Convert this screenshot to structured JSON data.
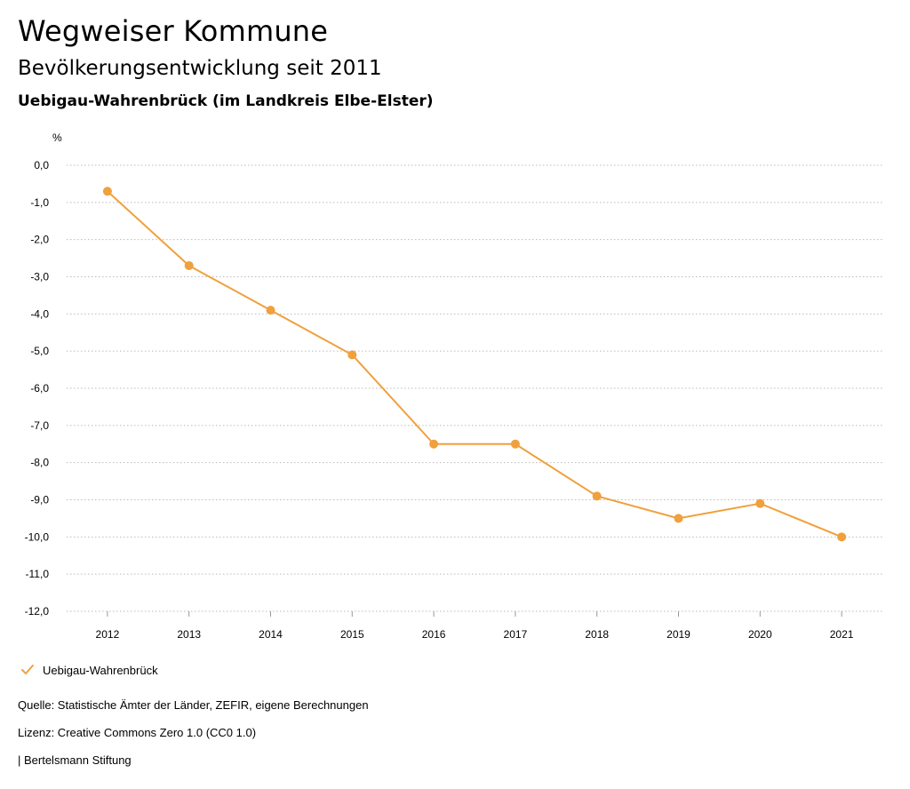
{
  "title": "Wegweiser Kommune",
  "subtitle": "Bevölkerungsentwicklung seit 2011",
  "region": "Uebigau-Wahrenbrück (im Landkreis Elbe-Elster)",
  "footer": {
    "source": "Quelle: Statistische Ämter der Länder, ZEFIR, eigene Berechnungen",
    "license": "Lizenz: Creative Commons Zero 1.0 (CC0 1.0)",
    "publisher": "| Bertelsmann Stiftung"
  },
  "colors": {
    "series": "#f0a03c",
    "grid": "#bbbbbb",
    "axis": "#999999",
    "text": "#000000"
  },
  "chart_data": {
    "type": "line",
    "title": "Bevölkerungsentwicklung seit 2011",
    "ylabel": "%",
    "xlabel": "",
    "categories": [
      "2012",
      "2013",
      "2014",
      "2015",
      "2016",
      "2017",
      "2018",
      "2019",
      "2020",
      "2021"
    ],
    "ylim": [
      -12.0,
      0.0
    ],
    "yticks": [
      0,
      -1,
      -2,
      -3,
      -4,
      -5,
      -6,
      -7,
      -8,
      -9,
      -10,
      -11,
      -12
    ],
    "ytick_labels": [
      "0,0",
      "-1,0",
      "-2,0",
      "-3,0",
      "-4,0",
      "-5,0",
      "-6,0",
      "-7,0",
      "-8,0",
      "-9,0",
      "-10,0",
      "-11,0",
      "-12,0"
    ],
    "grid": true,
    "legend_position": "bottom-left",
    "series": [
      {
        "name": "Uebigau-Wahrenbrück",
        "values": [
          -0.7,
          -2.7,
          -3.9,
          -5.1,
          -7.5,
          -7.5,
          -8.9,
          -9.5,
          -9.1,
          -10.0
        ]
      }
    ]
  }
}
